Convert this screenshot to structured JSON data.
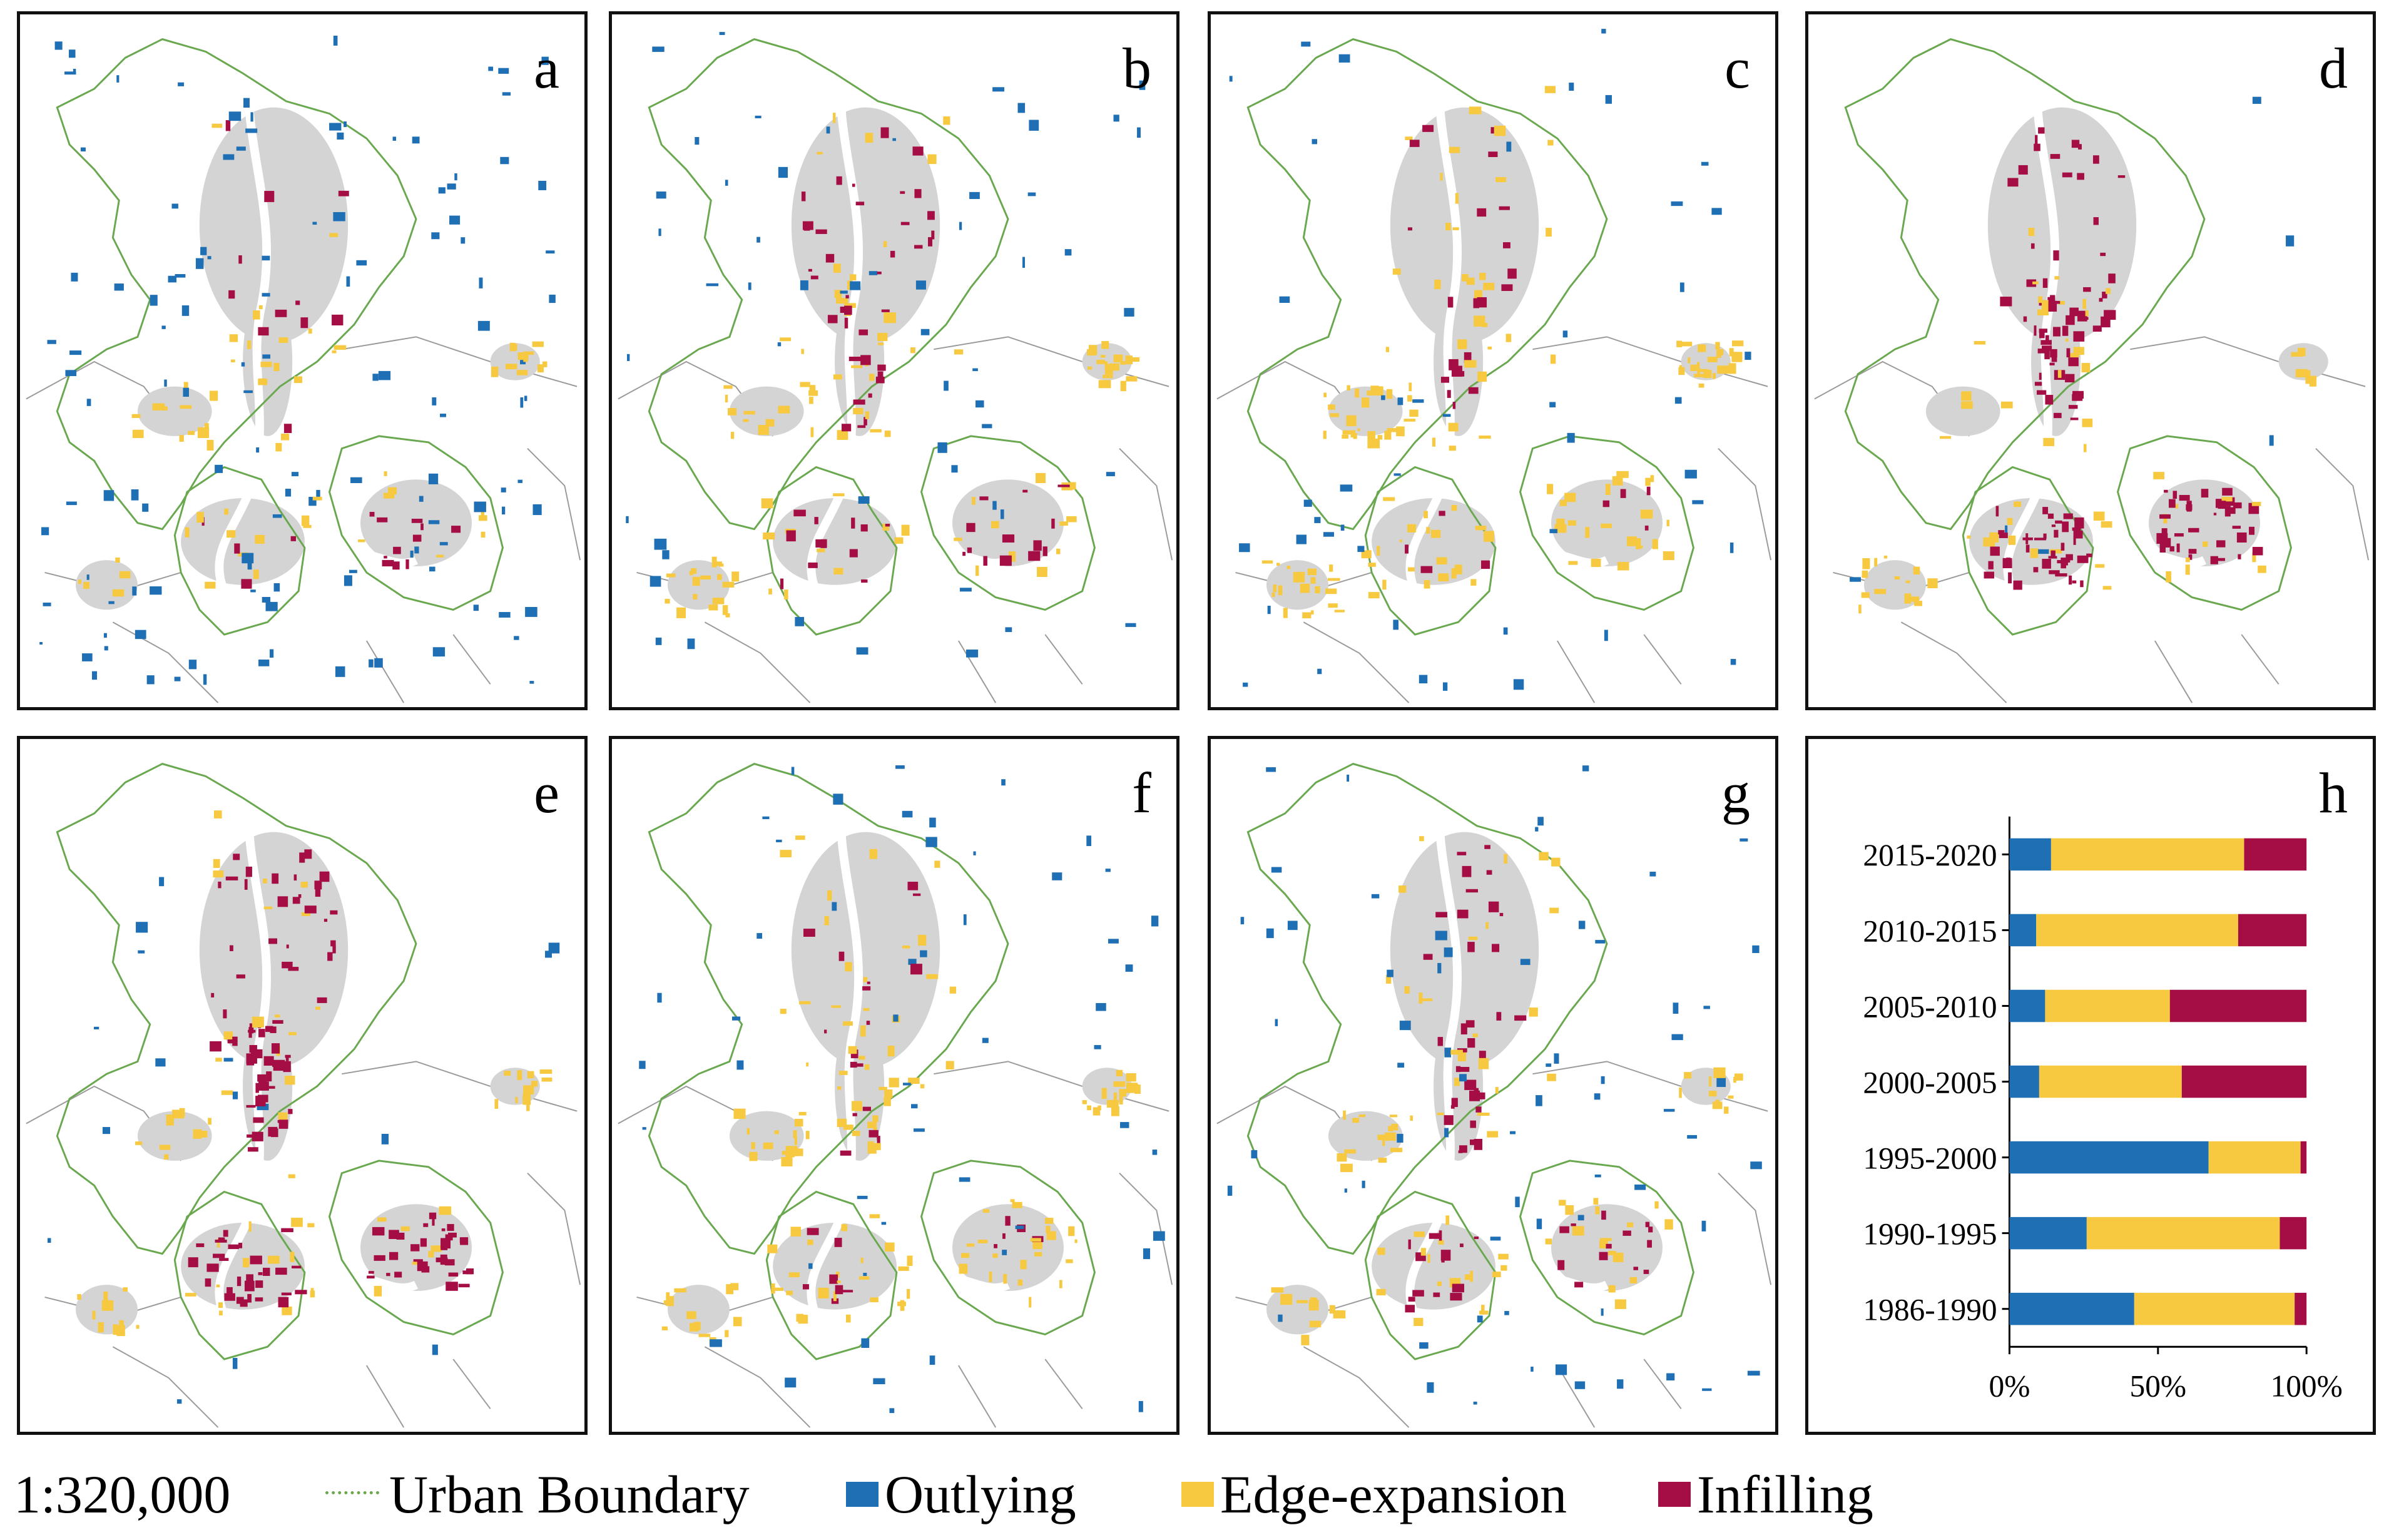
{
  "panels": [
    {
      "letter": "a",
      "dominant": "outlying"
    },
    {
      "letter": "b",
      "dominant": "mixed"
    },
    {
      "letter": "c",
      "dominant": "edge"
    },
    {
      "letter": "d",
      "dominant": "infill"
    },
    {
      "letter": "e",
      "dominant": "infill"
    },
    {
      "letter": "f",
      "dominant": "edge"
    },
    {
      "letter": "g",
      "dominant": "mixed"
    },
    {
      "letter": "h"
    }
  ],
  "legend": {
    "scale": "1:320,000",
    "boundary": "Urban Boundary",
    "outlying": "Outlying",
    "edge": "Edge-expansion",
    "infilling": "Infilling"
  },
  "colors": {
    "outlying": "#1f6fb5",
    "edge": "#f7c940",
    "infilling": "#a50d45",
    "boundary": "#6aa84f",
    "urban": "#d4d4d4",
    "frame": "#111111"
  },
  "chart_data": {
    "type": "bar",
    "orientation": "horizontal",
    "stacked": true,
    "title": "",
    "categories": [
      "2015-2020",
      "2010-2015",
      "2005-2010",
      "2000-2005",
      "1995-2000",
      "1990-1995",
      "1986-1990"
    ],
    "series": [
      {
        "name": "Outlying",
        "values": [
          14,
          9,
          12,
          10,
          67,
          26,
          42
        ]
      },
      {
        "name": "Edge-expansion",
        "values": [
          65,
          68,
          42,
          48,
          31,
          65,
          54
        ]
      },
      {
        "name": "Infilling",
        "values": [
          21,
          23,
          46,
          42,
          2,
          9,
          4
        ]
      }
    ],
    "xticks": [
      "0%",
      "50%",
      "100%"
    ],
    "xlim": [
      0,
      100
    ],
    "xlabel": "",
    "ylabel": ""
  }
}
